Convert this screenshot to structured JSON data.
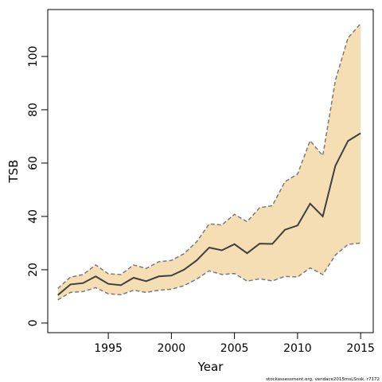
{
  "chart_data": {
    "type": "area",
    "title": "",
    "xlabel": "Year",
    "ylabel": "TSB",
    "xlim": [
      1990.2,
      2016.0
    ],
    "ylim": [
      -3.6,
      117.6
    ],
    "grid": false,
    "legend": "none",
    "x_ticks": [
      1995,
      2000,
      2005,
      2010,
      2015
    ],
    "y_ticks": [
      0,
      20,
      40,
      60,
      80,
      100
    ],
    "x": [
      1991,
      1992,
      1993,
      1994,
      1995,
      1996,
      1997,
      1998,
      1999,
      2000,
      2001,
      2002,
      2003,
      2004,
      2005,
      2006,
      2007,
      2008,
      2009,
      2010,
      2011,
      2012,
      2013,
      2014,
      2015
    ],
    "series": [
      {
        "role": "estimate",
        "values": [
          10.5,
          14.5,
          15,
          17.5,
          14.7,
          14.2,
          17,
          15.7,
          17.5,
          17.8,
          20,
          23.5,
          28.3,
          27.3,
          29.6,
          26.2,
          29.8,
          29.7,
          35,
          36.6,
          44.8,
          40,
          59,
          68.3,
          71.2
        ]
      },
      {
        "role": "upper",
        "values": [
          13,
          17.2,
          18.2,
          21.8,
          18.5,
          18.2,
          21.8,
          20.5,
          23,
          23.5,
          26,
          30.5,
          37.2,
          36.8,
          40.8,
          38,
          43.3,
          44,
          53,
          55.9,
          68.4,
          62.8,
          91,
          107,
          112.3
        ]
      },
      {
        "role": "lower",
        "values": [
          8.7,
          11.5,
          11.8,
          13.3,
          11,
          10.6,
          12.3,
          11.5,
          12.3,
          12.7,
          14,
          16.5,
          19.6,
          18.2,
          18.6,
          15.7,
          16.6,
          15.8,
          17.5,
          17.3,
          20.7,
          18.2,
          25.5,
          29.5,
          30
        ]
      }
    ],
    "colors": {
      "band": "#f5deb3",
      "bounds": "#7a7a7a",
      "estimate": "#3f3f3f"
    },
    "footnote": "stockassessment.org, vendace2015msLSnsk, r7172"
  }
}
